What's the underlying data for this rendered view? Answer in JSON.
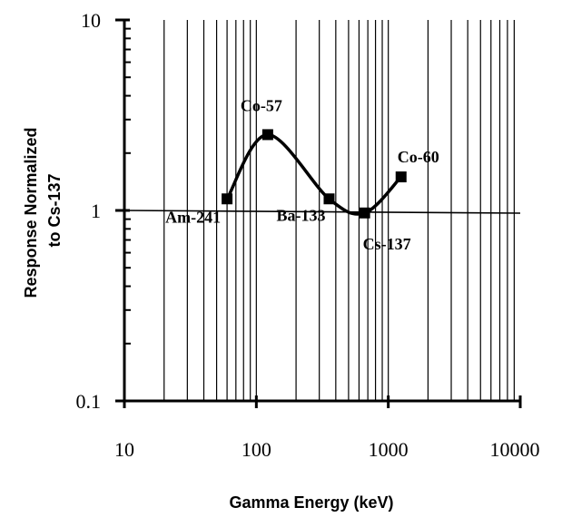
{
  "chart_data": {
    "type": "line",
    "xscale": "log",
    "yscale": "log",
    "xlabel": "Gamma Energy (keV)",
    "ylabel": "Response Normalized to Cs-137",
    "ylabel_lines": [
      "Response Normalized",
      "to Cs-137"
    ],
    "xlim": [
      10,
      10000
    ],
    "ylim": [
      0.1,
      10
    ],
    "x_ticks": [
      10,
      100,
      1000,
      10000
    ],
    "x_tick_labels": [
      "10",
      "100",
      "1000",
      "10000"
    ],
    "y_ticks": [
      0.1,
      1,
      10
    ],
    "y_tick_labels": [
      "0.1",
      "1",
      "10"
    ],
    "grid": "vertical minor lines",
    "reference_line": 1,
    "line_color": "#000000",
    "series": [
      {
        "x": [
          60,
          122,
          356,
          662,
          1250
        ],
        "y": [
          1.15,
          2.5,
          1.15,
          0.97,
          1.5
        ],
        "labels": [
          "Am-241",
          "Co-57",
          "Ba-133",
          "Cs-137",
          "Co-60"
        ]
      }
    ]
  }
}
